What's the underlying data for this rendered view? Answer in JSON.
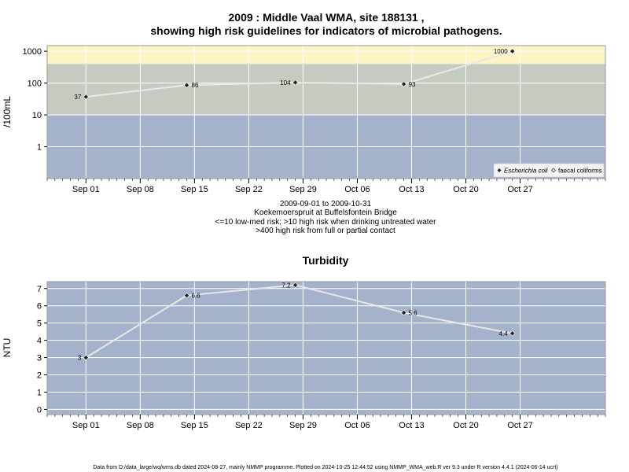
{
  "chart_data": [
    {
      "type": "line",
      "title_line1": "2009 : Middle Vaal WMA, site 188131 ,",
      "title_line2": "showing high risk guidelines for indicators of microbial pathogens.",
      "ylabel": "/100mL",
      "yscale": "log",
      "ylim": [
        0.1,
        1500
      ],
      "yticks": [
        1,
        10,
        100,
        1000
      ],
      "ytick_labels": [
        "1",
        "10",
        "100",
        "1000"
      ],
      "xlim": [
        "2009-08-27",
        "2009-11-07"
      ],
      "xticks": [
        "2009-09-01",
        "2009-09-08",
        "2009-09-15",
        "2009-09-22",
        "2009-09-29",
        "2009-10-06",
        "2009-10-13",
        "2009-10-20",
        "2009-10-27"
      ],
      "xtick_labels": [
        "Sep 01",
        "Sep 08",
        "Sep 15",
        "Sep 22",
        "Sep 29",
        "Oct 06",
        "Oct 13",
        "Oct 20",
        "Oct 27"
      ],
      "bands": [
        {
          "from": 0.1,
          "to": 10,
          "color": "#a4b3cb"
        },
        {
          "from": 10,
          "to": 400,
          "color": "#c4ccc1"
        },
        {
          "from": 400,
          "to": 1500,
          "color": "#fcf4c4"
        }
      ],
      "grid": true,
      "series": [
        {
          "name": "Escherichia coli",
          "marker": "filled-diamond",
          "x": [
            "2009-09-01",
            "2009-09-14",
            "2009-09-28",
            "2009-10-12",
            "2009-10-26"
          ],
          "y": [
            37,
            86,
            104,
            93,
            1000
          ],
          "labels": [
            "37",
            "86",
            "104",
            "93",
            "1000"
          ]
        }
      ],
      "legend": [
        {
          "name": "Escherichia coli",
          "marker": "filled-diamond"
        },
        {
          "name": "faecal coliforms",
          "marker": "open-diamond"
        }
      ],
      "legend_position": "bottom-right",
      "subtitle_lines": [
        "2009-09-01 to 2009-10-31",
        "Koekemoerspruit at Buffelsfontein Bridge",
        "<=10 low-med risk; >10 high risk when drinking untreated water",
        ">400 high risk from full or partial contact"
      ]
    },
    {
      "type": "line",
      "title": "Turbidity",
      "ylabel": "NTU",
      "ylim": [
        -0.3,
        7.4
      ],
      "yticks": [
        0,
        1,
        2,
        3,
        4,
        5,
        6,
        7
      ],
      "ytick_labels": [
        "0",
        "1",
        "2",
        "3",
        "4",
        "5",
        "6",
        "7"
      ],
      "xlim": [
        "2009-08-27",
        "2009-11-07"
      ],
      "xticks": [
        "2009-09-01",
        "2009-09-08",
        "2009-09-15",
        "2009-09-22",
        "2009-09-29",
        "2009-10-06",
        "2009-10-13",
        "2009-10-20",
        "2009-10-27"
      ],
      "xtick_labels": [
        "Sep 01",
        "Sep 08",
        "Sep 15",
        "Sep 22",
        "Sep 29",
        "Oct 06",
        "Oct 13",
        "Oct 20",
        "Oct 27"
      ],
      "background": "#a4b3cb",
      "grid": true,
      "series": [
        {
          "name": "",
          "marker": "filled-diamond",
          "x": [
            "2009-09-01",
            "2009-09-14",
            "2009-09-28",
            "2009-10-12",
            "2009-10-26"
          ],
          "y": [
            3,
            6.6,
            7.2,
            5.6,
            4.4
          ],
          "labels": [
            "3",
            "6.6",
            "7.2",
            "5.6",
            "4.4"
          ]
        }
      ]
    }
  ],
  "footer": "Data from D:/data_large/wq/wms.db dated 2024-08-27, mainly NMMP programme. Plotted on 2024-10-25 12:44:52 using NMMP_WMA_web.R ver 9.3 under R version 4.4.1 (2024-06-14 ucrt)"
}
